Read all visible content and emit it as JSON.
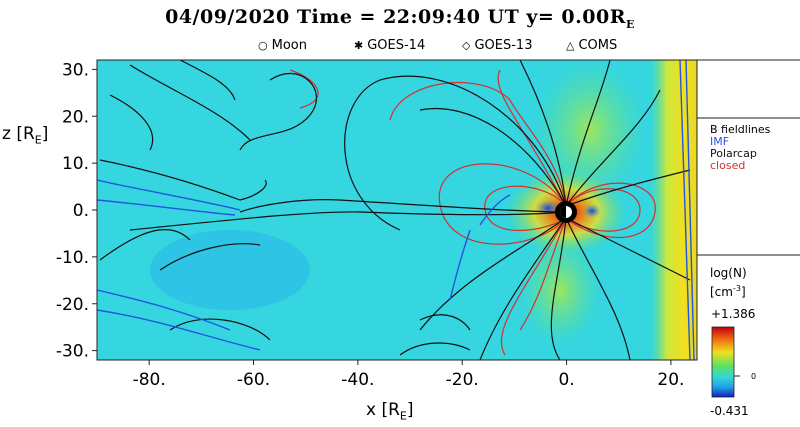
{
  "header": {
    "title_prefix": "04/09/2020 Time = 22:09:40 UT y= 0.00R",
    "title_sub": "E"
  },
  "markers": [
    {
      "symbol": "○",
      "label": "Moon"
    },
    {
      "symbol": "✱",
      "label": "GOES-14"
    },
    {
      "symbol": "◇",
      "label": "GOES-13"
    },
    {
      "symbol": "△",
      "label": "COMS"
    }
  ],
  "fieldlines": {
    "title": "B fieldlines",
    "items": [
      {
        "label": "IMF",
        "color": "#2255dd"
      },
      {
        "label": "Polarcap",
        "color": "#111111"
      },
      {
        "label": "closed",
        "color": "#d43030"
      }
    ]
  },
  "colorbar": {
    "label_line1": "log(N)",
    "label_line2_prefix": "[cm",
    "label_line2_sup": "-3",
    "label_line2_suffix": "]",
    "max_label": "+1.386",
    "min_label": "-0.431",
    "zero_label": "0"
  },
  "chart_data": {
    "type": "heatmap",
    "xlabel_main": "x [R",
    "xlabel_sub": "E",
    "ylabel_main": "z [R",
    "ylabel_sub": "E",
    "xlim": [
      -90,
      25
    ],
    "ylim": [
      -32,
      32
    ],
    "xticks": [
      -80,
      -60,
      -40,
      -20,
      0,
      20
    ],
    "xtick_labels": [
      "-80.",
      "-60.",
      "-40.",
      "-20.",
      "0.",
      "20."
    ],
    "yticks": [
      30,
      20,
      10,
      0,
      -10,
      -20,
      -30
    ],
    "ytick_labels": [
      "30.",
      "20.",
      "10.",
      "0.",
      "-10.",
      "-20.",
      "-30."
    ],
    "value_range": [
      -0.431,
      1.386
    ],
    "colormap": [
      "#1020c0",
      "#20a0e8",
      "#30d8d8",
      "#60e060",
      "#f0e020",
      "#f07010",
      "#c00010"
    ],
    "background_color": "#35d6e0",
    "series": [
      {
        "name": "IMF",
        "color": "#2255dd"
      },
      {
        "name": "Polarcap",
        "color": "#111111"
      },
      {
        "name": "closed",
        "color": "#d43030"
      }
    ]
  }
}
